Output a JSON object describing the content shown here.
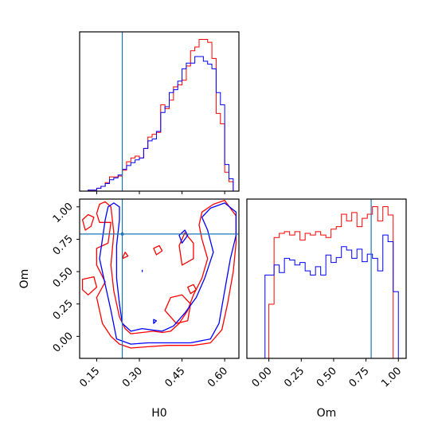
{
  "chart_data": {
    "type": "corner-plot",
    "colors": {
      "red": "#ff0000",
      "blue": "#0000ff",
      "truth": "#1f77b4"
    },
    "parameters": [
      "H0",
      "Om"
    ],
    "truths": {
      "H0": 0.24,
      "Om": 0.79
    },
    "panels": [
      {
        "id": "H0-marginal",
        "type": "step-histogram",
        "xlim": [
          0.09,
          0.65
        ],
        "xticks": [
          0.15,
          0.3,
          0.45,
          0.6
        ],
        "show_yticks": false,
        "series": [
          {
            "color": "#ff0000",
            "edges": [
              0.09,
              0.12,
              0.15,
              0.165,
              0.18,
              0.195,
              0.21,
              0.225,
              0.24,
              0.255,
              0.27,
              0.285,
              0.3,
              0.315,
              0.33,
              0.345,
              0.36,
              0.375,
              0.39,
              0.405,
              0.42,
              0.435,
              0.45,
              0.465,
              0.48,
              0.495,
              0.51,
              0.525,
              0.54,
              0.555,
              0.57,
              0.585,
              0.6,
              0.615,
              0.63,
              0.645
            ],
            "values": [
              0,
              1,
              3,
              5,
              9,
              15,
              15,
              16,
              22,
              31,
              35,
              37,
              35,
              45,
              57,
              60,
              62,
              91,
              87,
              96,
              110,
              112,
              117,
              132,
              148,
              152,
              160,
              160,
              157,
              140,
              82,
              71,
              20,
              10,
              0
            ]
          },
          {
            "color": "#0000ff",
            "edges": [
              0.09,
              0.12,
              0.15,
              0.165,
              0.18,
              0.195,
              0.21,
              0.225,
              0.24,
              0.255,
              0.27,
              0.285,
              0.3,
              0.315,
              0.33,
              0.345,
              0.36,
              0.375,
              0.39,
              0.405,
              0.42,
              0.435,
              0.45,
              0.465,
              0.48,
              0.495,
              0.51,
              0.525,
              0.54,
              0.555,
              0.57,
              0.585,
              0.6,
              0.615,
              0.63,
              0.645
            ],
            "values": [
              0,
              1,
              3,
              5,
              8,
              12,
              14,
              17,
              23,
              27,
              30,
              33,
              35,
              45,
              53,
              55,
              63,
              83,
              89,
              104,
              107,
              116,
              129,
              135,
              135,
              142,
              142,
              137,
              134,
              129,
              104,
              91,
              28,
              13,
              0
            ]
          }
        ]
      },
      {
        "id": "H0-Om-contours",
        "type": "contour",
        "xlim": [
          0.09,
          0.65
        ],
        "ylim": [
          -0.17,
          1.06
        ],
        "xticks": [
          0.15,
          0.3,
          0.45,
          0.6
        ],
        "yticks": [
          0.0,
          0.25,
          0.5,
          0.75,
          1.0
        ],
        "xlabel": "H0",
        "ylabel": "Om",
        "series": [
          {
            "color": "#ff0000",
            "contours": [
              [
                [
                  0.23,
                  -0.06
                ],
                [
                  0.27,
                  -0.09
                ],
                [
                  0.33,
                  -0.08
                ],
                [
                  0.4,
                  -0.07
                ],
                [
                  0.49,
                  -0.07
                ],
                [
                  0.55,
                  -0.05
                ],
                [
                  0.59,
                  0.05
                ],
                [
                  0.61,
                  0.25
                ],
                [
                  0.63,
                  0.5
                ],
                [
                  0.64,
                  0.72
                ],
                [
                  0.64,
                  0.93
                ],
                [
                  0.6,
                  1.05
                ],
                [
                  0.56,
                  1.02
                ],
                [
                  0.52,
                  0.96
                ],
                [
                  0.51,
                  0.86
                ],
                [
                  0.52,
                  0.75
                ],
                [
                  0.54,
                  0.6
                ],
                [
                  0.52,
                  0.45
                ],
                [
                  0.49,
                  0.32
                ],
                [
                  0.47,
                  0.2
                ],
                [
                  0.44,
                  0.1
                ],
                [
                  0.41,
                  0.04
                ],
                [
                  0.38,
                  0.03
                ],
                [
                  0.35,
                  0.04
                ],
                [
                  0.31,
                  0.03
                ],
                [
                  0.27,
                  0.02
                ],
                [
                  0.25,
                  0.06
                ],
                [
                  0.23,
                  0.15
                ],
                [
                  0.21,
                  0.35
                ],
                [
                  0.2,
                  0.55
                ],
                [
                  0.21,
                  0.8
                ],
                [
                  0.2,
                  1.0
                ],
                [
                  0.18,
                  1.04
                ],
                [
                  0.16,
                  1.02
                ],
                [
                  0.15,
                  0.95
                ],
                [
                  0.16,
                  0.88
                ],
                [
                  0.2,
                  0.88
                ],
                [
                  0.19,
                  0.72
                ],
                [
                  0.15,
                  0.68
                ],
                [
                  0.15,
                  0.55
                ],
                [
                  0.18,
                  0.42
                ],
                [
                  0.15,
                  0.3
                ],
                [
                  0.17,
                  0.1
                ],
                [
                  0.2,
                  0.0
                ],
                [
                  0.23,
                  -0.06
                ]
              ],
              [
                [
                  0.11,
                  0.82
                ],
                [
                  0.13,
                  0.85
                ],
                [
                  0.14,
                  0.92
                ],
                [
                  0.12,
                  0.94
                ],
                [
                  0.1,
                  0.9
                ],
                [
                  0.11,
                  0.82
                ]
              ],
              [
                [
                  0.1,
                  0.44
                ],
                [
                  0.14,
                  0.46
                ],
                [
                  0.15,
                  0.38
                ],
                [
                  0.12,
                  0.32
                ],
                [
                  0.1,
                  0.36
                ],
                [
                  0.1,
                  0.44
                ]
              ],
              [
                [
                  0.43,
                  0.1
                ],
                [
                  0.47,
                  0.12
                ],
                [
                  0.48,
                  0.25
                ],
                [
                  0.45,
                  0.32
                ],
                [
                  0.41,
                  0.3
                ],
                [
                  0.39,
                  0.2
                ],
                [
                  0.43,
                  0.1
                ]
              ],
              [
                [
                  0.45,
                  0.55
                ],
                [
                  0.49,
                  0.6
                ],
                [
                  0.49,
                  0.72
                ],
                [
                  0.46,
                  0.8
                ],
                [
                  0.44,
                  0.7
                ],
                [
                  0.45,
                  0.55
                ]
              ],
              [
                [
                  0.48,
                  0.33
                ],
                [
                  0.5,
                  0.36
                ],
                [
                  0.49,
                  0.4
                ],
                [
                  0.47,
                  0.38
                ],
                [
                  0.48,
                  0.33
                ]
              ],
              [
                [
                  0.36,
                  0.63
                ],
                [
                  0.38,
                  0.66
                ],
                [
                  0.37,
                  0.7
                ],
                [
                  0.35,
                  0.68
                ],
                [
                  0.36,
                  0.63
                ]
              ],
              [
                [
                  0.24,
                  0.6
                ],
                [
                  0.26,
                  0.62
                ],
                [
                  0.25,
                  0.65
                ],
                [
                  0.24,
                  0.6
                ]
              ]
            ]
          },
          {
            "color": "#0000ff",
            "contours": [
              [
                [
                  0.22,
                  -0.02
                ],
                [
                  0.27,
                  -0.06
                ],
                [
                  0.33,
                  -0.05
                ],
                [
                  0.4,
                  -0.05
                ],
                [
                  0.48,
                  -0.05
                ],
                [
                  0.55,
                  -0.02
                ],
                [
                  0.58,
                  0.1
                ],
                [
                  0.6,
                  0.35
                ],
                [
                  0.62,
                  0.6
                ],
                [
                  0.64,
                  0.78
                ],
                [
                  0.64,
                  0.96
                ],
                [
                  0.6,
                  1.03
                ],
                [
                  0.55,
                  0.99
                ],
                [
                  0.52,
                  0.92
                ],
                [
                  0.54,
                  0.82
                ],
                [
                  0.56,
                  0.65
                ],
                [
                  0.53,
                  0.45
                ],
                [
                  0.5,
                  0.3
                ],
                [
                  0.46,
                  0.18
                ],
                [
                  0.42,
                  0.08
                ],
                [
                  0.38,
                  0.04
                ],
                [
                  0.34,
                  0.05
                ],
                [
                  0.31,
                  0.06
                ],
                [
                  0.27,
                  0.04
                ],
                [
                  0.24,
                  0.1
                ],
                [
                  0.23,
                  0.25
                ],
                [
                  0.22,
                  0.45
                ],
                [
                  0.22,
                  0.7
                ],
                [
                  0.23,
                  0.9
                ],
                [
                  0.23,
                  1.0
                ],
                [
                  0.21,
                  1.03
                ],
                [
                  0.19,
                  1.0
                ],
                [
                  0.18,
                  0.9
                ],
                [
                  0.17,
                  0.75
                ],
                [
                  0.16,
                  0.6
                ],
                [
                  0.18,
                  0.4
                ],
                [
                  0.2,
                  0.2
                ],
                [
                  0.22,
                  -0.02
                ]
              ],
              [
                [
                  0.45,
                  0.72
                ],
                [
                  0.47,
                  0.78
                ],
                [
                  0.46,
                  0.82
                ],
                [
                  0.44,
                  0.78
                ],
                [
                  0.45,
                  0.72
                ]
              ],
              [
                [
                  0.35,
                  0.1
                ],
                [
                  0.36,
                  0.12
                ],
                [
                  0.35,
                  0.13
                ],
                [
                  0.35,
                  0.1
                ]
              ],
              [
                [
                  0.31,
                  0.5
                ],
                [
                  0.31,
                  0.51
                ]
              ]
            ]
          }
        ]
      },
      {
        "id": "Om-marginal",
        "type": "step-histogram",
        "xlim": [
          -0.17,
          1.06
        ],
        "xticks": [
          0.0,
          0.25,
          0.5,
          0.75,
          1.0
        ],
        "xlabel": "Om",
        "show_yticks": false,
        "series": [
          {
            "color": "#ff0000",
            "edges": [
              -0.17,
              -0.03,
              0.0,
              0.04,
              0.08,
              0.12,
              0.16,
              0.2,
              0.24,
              0.28,
              0.32,
              0.36,
              0.4,
              0.44,
              0.48,
              0.52,
              0.56,
              0.6,
              0.64,
              0.68,
              0.72,
              0.76,
              0.8,
              0.84,
              0.88,
              0.92,
              0.96,
              1.06
            ],
            "values": [
              0,
              0,
              65,
              145,
              150,
              152,
              148,
              152,
              142,
              150,
              148,
              152,
              148,
              145,
              155,
              158,
              173,
              165,
              175,
              158,
              168,
              173,
              182,
              165,
              182,
              172,
              0
            ]
          },
          {
            "color": "#0000ff",
            "edges": [
              -0.17,
              -0.06,
              -0.03,
              0.0,
              0.04,
              0.08,
              0.12,
              0.16,
              0.2,
              0.24,
              0.28,
              0.32,
              0.36,
              0.4,
              0.44,
              0.48,
              0.52,
              0.56,
              0.6,
              0.64,
              0.68,
              0.72,
              0.76,
              0.8,
              0.84,
              0.88,
              0.92,
              0.96,
              1.0,
              1.06
            ],
            "values": [
              0,
              0,
              100,
              100,
              112,
              103,
              120,
              118,
              112,
              115,
              105,
              100,
              110,
              100,
              124,
              115,
              121,
              134,
              130,
              120,
              131,
              116,
              125,
              120,
              105,
              148,
              140,
              80,
              0
            ]
          }
        ]
      }
    ]
  }
}
